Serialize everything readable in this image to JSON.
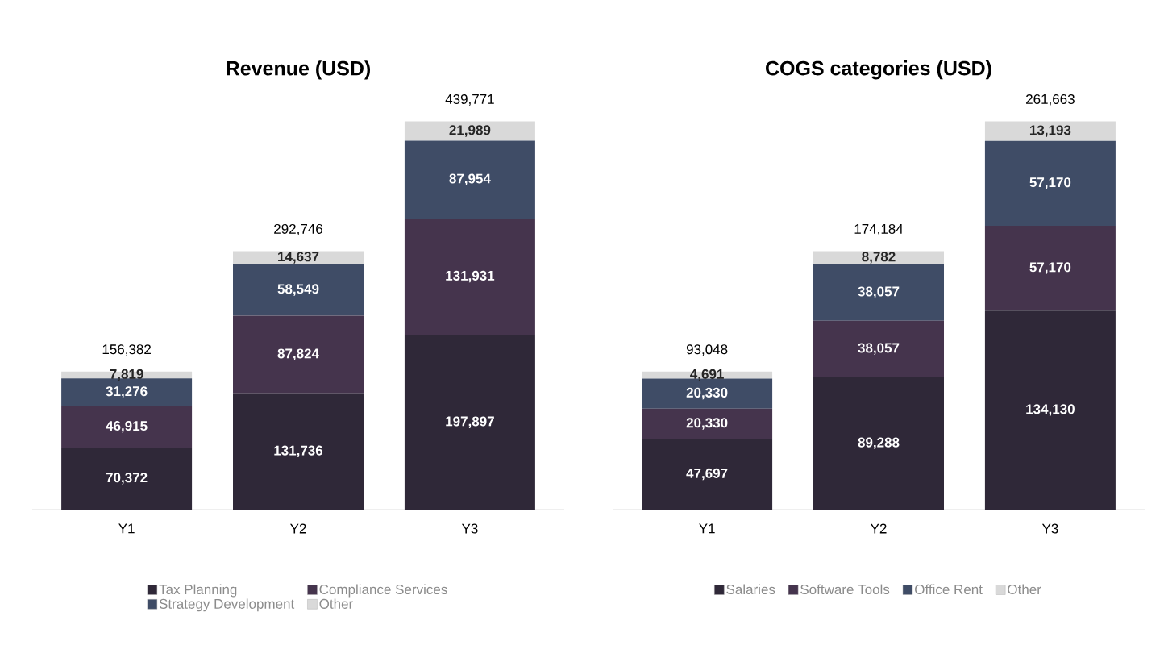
{
  "chart_data": [
    {
      "type": "bar",
      "title": "Revenue (USD)",
      "stacked": true,
      "legend": "bottom",
      "categories": [
        "Y1",
        "Y2",
        "Y3"
      ],
      "totals": [
        "156,382",
        "292,746",
        "439,771"
      ],
      "series": [
        {
          "name": "Tax Planning",
          "color": "#2f2838",
          "values": [
            70372,
            131736,
            197897
          ],
          "value_labels": [
            "70,372",
            "131,736",
            "197,897"
          ]
        },
        {
          "name": "Compliance Services",
          "color": "#45344d",
          "values": [
            46915,
            87824,
            131931
          ],
          "value_labels": [
            "46,915",
            "87,824",
            "131,931"
          ]
        },
        {
          "name": "Strategy Development",
          "color": "#3f4c66",
          "values": [
            31276,
            58549,
            87954
          ],
          "value_labels": [
            "31,276",
            "58,549",
            "87,954"
          ]
        },
        {
          "name": "Other",
          "color": "#d9d9d9",
          "values": [
            7819,
            14637,
            21989
          ],
          "value_labels": [
            "7,819",
            "14,637",
            "21,989"
          ]
        }
      ]
    },
    {
      "type": "bar",
      "title": "COGS categories (USD)",
      "stacked": true,
      "legend": "bottom",
      "categories": [
        "Y1",
        "Y2",
        "Y3"
      ],
      "totals": [
        "93,048",
        "174,184",
        "261,663"
      ],
      "series": [
        {
          "name": "Salaries",
          "color": "#2f2838",
          "values": [
            47697,
            89288,
            134130
          ],
          "value_labels": [
            "47,697",
            "89,288",
            "134,130"
          ]
        },
        {
          "name": "Software Tools",
          "color": "#45344d",
          "values": [
            20330,
            38057,
            57170
          ],
          "value_labels": [
            "20,330",
            "38,057",
            "57,170"
          ]
        },
        {
          "name": "Office Rent",
          "color": "#3f4c66",
          "values": [
            20330,
            38057,
            57170
          ],
          "value_labels": [
            "20,330",
            "38,057",
            "57,170"
          ]
        },
        {
          "name": "Other",
          "color": "#d9d9d9",
          "values": [
            4691,
            8782,
            13193
          ],
          "value_labels": [
            "4,691",
            "8,782",
            "13,193"
          ]
        }
      ]
    }
  ]
}
